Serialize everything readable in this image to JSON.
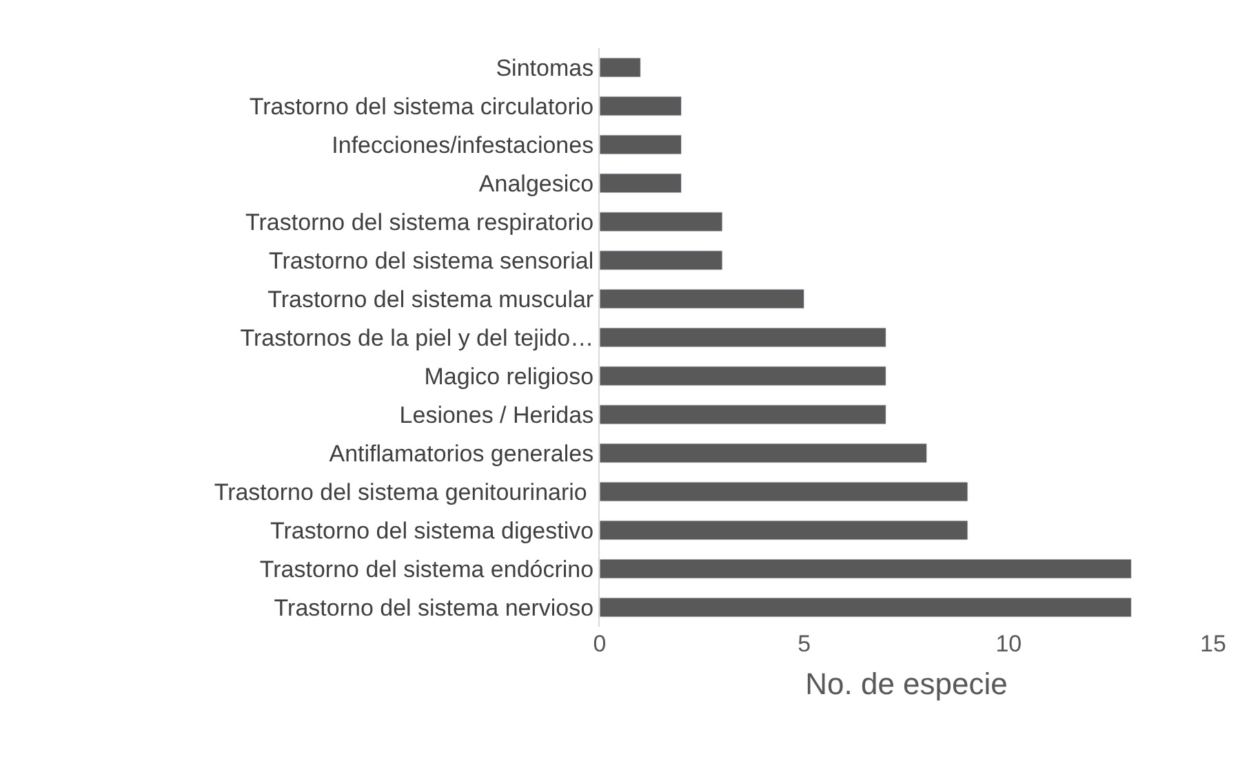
{
  "chart_data": {
    "type": "bar",
    "orientation": "horizontal",
    "xlabel": "No. de especie",
    "categories": [
      "Sintomas",
      "Trastorno del sistema circulatorio",
      "Infecciones/infestaciones",
      "Analgesico",
      "Trastorno del sistema respiratorio",
      "Trastorno del sistema sensorial",
      "Trastorno del sistema muscular",
      "Trastornos de la piel y del tejido…",
      "Magico religioso",
      "Lesiones / Heridas",
      "Antiflamatorios generales",
      "Trastorno del sistema genitourinario ",
      "Trastorno del sistema digestivo",
      "Trastorno del sistema endócrino",
      "Trastorno del sistema nervioso"
    ],
    "values": [
      1,
      2,
      2,
      2,
      3,
      3,
      5,
      7,
      7,
      7,
      8,
      9,
      9,
      13,
      13
    ],
    "color": "#595959",
    "xlim": [
      0,
      15
    ],
    "xticks": [
      0,
      5,
      10,
      15
    ]
  }
}
